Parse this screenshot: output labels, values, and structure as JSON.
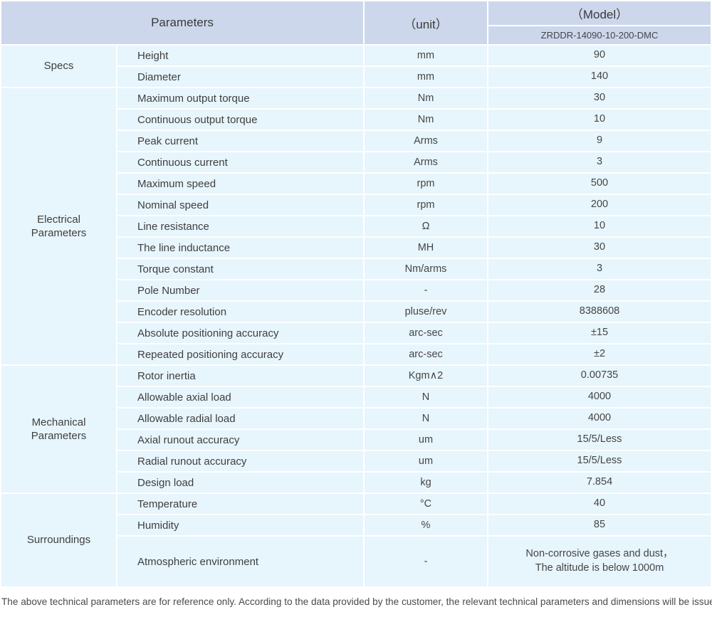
{
  "table": {
    "header": {
      "parameters_label": "Parameters",
      "unit_label": "（unit）",
      "model_label": "（Model）",
      "model_number": "ZRDDR-14090-10-200-DMC"
    },
    "sections": [
      {
        "group": "Specs",
        "rows": [
          {
            "name": "Height",
            "unit": "mm",
            "value": "90"
          },
          {
            "name": "Diameter",
            "unit": "mm",
            "value": "140"
          }
        ]
      },
      {
        "group": "Electrical\nParameters",
        "rows": [
          {
            "name": "Maximum output torque",
            "unit": "Nm",
            "value": "30"
          },
          {
            "name": "Continuous output torque",
            "unit": "Nm",
            "value": "10"
          },
          {
            "name": "Peak current",
            "unit": "Arms",
            "value": "9"
          },
          {
            "name": "Continuous current",
            "unit": "Arms",
            "value": "3"
          },
          {
            "name": "Maximum speed",
            "unit": "rpm",
            "value": "500"
          },
          {
            "name": "Nominal speed",
            "unit": "rpm",
            "value": "200"
          },
          {
            "name": "Line resistance",
            "unit": "Ω",
            "value": "10"
          },
          {
            "name": "The line inductance",
            "unit": "MH",
            "value": "30"
          },
          {
            "name": "Torque constant",
            "unit": "Nm/arms",
            "value": "3"
          },
          {
            "name": "Pole Number",
            "unit": "-",
            "value": "28"
          },
          {
            "name": "Encoder resolution",
            "unit": "pluse/rev",
            "value": "8388608"
          },
          {
            "name": "Absolute positioning accuracy",
            "unit": "arc-sec",
            "value": "±15"
          },
          {
            "name": "Repeated positioning accuracy",
            "unit": "arc-sec",
            "value": "±2"
          }
        ]
      },
      {
        "group": "Mechanical\nParameters",
        "rows": [
          {
            "name": "Rotor inertia",
            "unit": "Kgm∧2",
            "value": "0.00735"
          },
          {
            "name": "Allowable axial load",
            "unit": "N",
            "value": "4000"
          },
          {
            "name": "Allowable radial load",
            "unit": "N",
            "value": "4000"
          },
          {
            "name": "Axial runout accuracy",
            "unit": "um",
            "value": "15/5/Less"
          },
          {
            "name": "Radial runout accuracy",
            "unit": "um",
            "value": "15/5/Less"
          },
          {
            "name": "Design load",
            "unit": "kg",
            "value": "7.854"
          }
        ]
      },
      {
        "group": "Surroundings",
        "rows": [
          {
            "name": "Temperature",
            "unit": "°C",
            "value": "40"
          },
          {
            "name": "Humidity",
            "unit": "%",
            "value": "85"
          },
          {
            "name": "Atmospheric environment",
            "unit": "-",
            "value": "Non-corrosive gases and dust，\nThe altitude is below 1000m",
            "tall": true
          }
        ]
      }
    ],
    "colors": {
      "header_bg": "#cdd7ec",
      "body_bg": "#e7f5fc",
      "separator": "#ffffff",
      "text": "#454545"
    }
  },
  "footer": {
    "note": "The above technical parameters are for reference only. According to the data provided by the customer, the relevant technical parameters and dimensions will be issued."
  }
}
